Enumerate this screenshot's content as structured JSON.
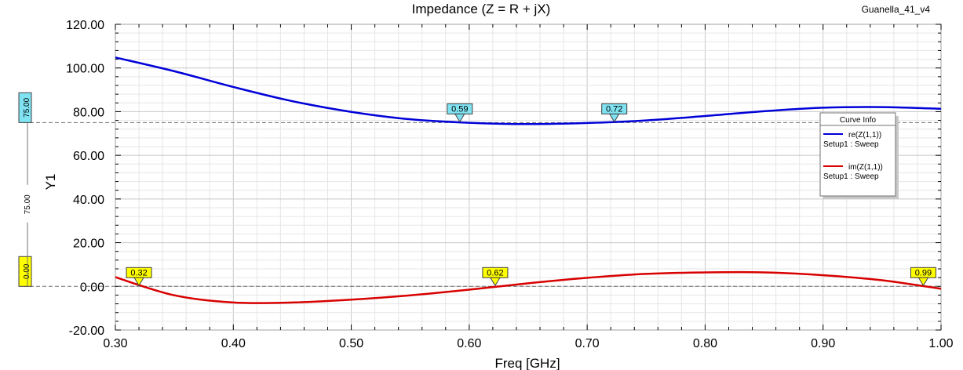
{
  "project_label": "Guanella_41_v4",
  "chart_data": {
    "type": "line",
    "title": "Impedance (Z = R + jX)",
    "xlabel": "Freq [GHz]",
    "ylabel": "Y1",
    "xlim": [
      0.3,
      1.0
    ],
    "ylim": [
      -20.0,
      120.0
    ],
    "x_ticks": [
      "0.30",
      "0.40",
      "0.50",
      "0.60",
      "0.70",
      "0.80",
      "0.90",
      "1.00"
    ],
    "y_ticks": [
      "-20.00",
      "0.00",
      "20.00",
      "40.00",
      "60.00",
      "80.00",
      "100.00",
      "120.00"
    ],
    "grid": true,
    "legend_position": "right",
    "legend_title": "Curve Info",
    "series": [
      {
        "name": "re(Z(1,1))",
        "setup": "Setup1 : Sweep",
        "color": "#0000d8",
        "x": [
          0.3,
          0.35,
          0.4,
          0.45,
          0.5,
          0.55,
          0.6,
          0.65,
          0.7,
          0.75,
          0.8,
          0.85,
          0.9,
          0.95,
          1.0
        ],
        "y": [
          104.8,
          98.5,
          91.3,
          84.8,
          79.9,
          76.5,
          74.9,
          74.3,
          74.8,
          76.0,
          78.0,
          80.2,
          81.8,
          82.1,
          81.3
        ]
      },
      {
        "name": "im(Z(1,1))",
        "setup": "Setup1 : Sweep",
        "color": "#d80000",
        "x": [
          0.3,
          0.35,
          0.4,
          0.45,
          0.5,
          0.55,
          0.6,
          0.65,
          0.7,
          0.75,
          0.8,
          0.85,
          0.9,
          0.95,
          1.0
        ],
        "y": [
          4.2,
          -4.1,
          -7.4,
          -7.4,
          -6.1,
          -4.1,
          -1.5,
          1.4,
          3.9,
          5.7,
          6.4,
          6.4,
          5.1,
          2.8,
          -1.1
        ]
      }
    ],
    "markers": [
      {
        "label": "0.59",
        "x": 0.592,
        "y": 75.0,
        "color": "#7fe3f2"
      },
      {
        "label": "0.72",
        "x": 0.723,
        "y": 75.0,
        "color": "#7fe3f2"
      },
      {
        "label": "0.32",
        "x": 0.32,
        "y": 0.0,
        "color": "#ffff00"
      },
      {
        "label": "0.62",
        "x": 0.622,
        "y": 0.0,
        "color": "#ffff00"
      },
      {
        "label": "0.99",
        "x": 0.985,
        "y": 0.0,
        "color": "#ffff00"
      }
    ],
    "reference_lines": [
      {
        "value": 75.0,
        "label": "75.00",
        "color": "#7fe3f2"
      },
      {
        "value": 0.0,
        "label": "0.00",
        "color": "#ffff00"
      }
    ],
    "delta_label": "75.00"
  }
}
